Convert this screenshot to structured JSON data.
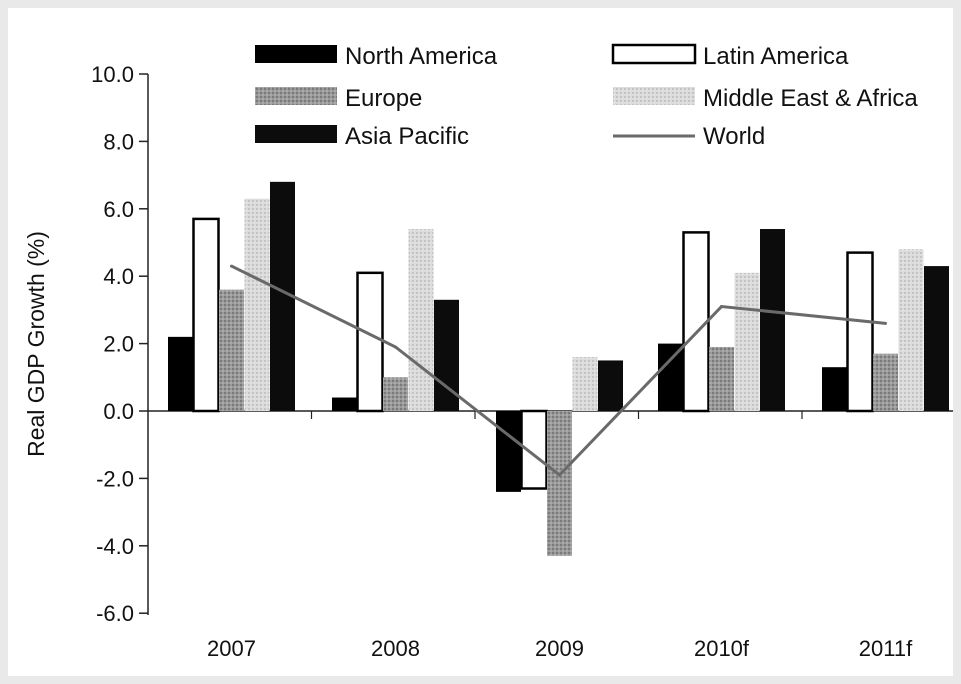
{
  "chart_data": {
    "type": "bar",
    "ylabel": "Real GDP Growth (%)",
    "xlabel": "",
    "title": "",
    "categories": [
      "2007",
      "2008",
      "2009",
      "2010f",
      "2011f"
    ],
    "ylim": [
      -6.0,
      10.0
    ],
    "yticks": [
      "10.0",
      "8.0",
      "6.0",
      "4.0",
      "2.0",
      "0.0",
      "-2.0",
      "-4.0",
      "-6.0"
    ],
    "series": [
      {
        "name": "North America",
        "values": [
          2.2,
          0.4,
          -2.4,
          2.0,
          1.3
        ],
        "color": "#000000",
        "style": "solid"
      },
      {
        "name": "Latin America",
        "values": [
          5.7,
          4.1,
          -2.3,
          5.3,
          4.7
        ],
        "color": "#ffffff",
        "style": "outline"
      },
      {
        "name": "Europe",
        "values": [
          3.6,
          1.0,
          -4.3,
          1.9,
          1.7
        ],
        "color": "#8e8e8e",
        "style": "hatched"
      },
      {
        "name": "Middle East & Africa",
        "values": [
          6.3,
          5.4,
          1.6,
          4.1,
          4.8
        ],
        "color": "#d2d2d2",
        "style": "dotted"
      },
      {
        "name": "Asia Pacific",
        "values": [
          6.8,
          3.3,
          1.5,
          5.4,
          4.3
        ],
        "color": "#0c0c0c",
        "style": "solid"
      }
    ],
    "line_series": {
      "name": "World",
      "values": [
        4.3,
        1.9,
        -1.9,
        3.1,
        2.6
      ],
      "color": "#6a6a6a"
    },
    "legend": {
      "placement": "top"
    },
    "grid": false
  }
}
